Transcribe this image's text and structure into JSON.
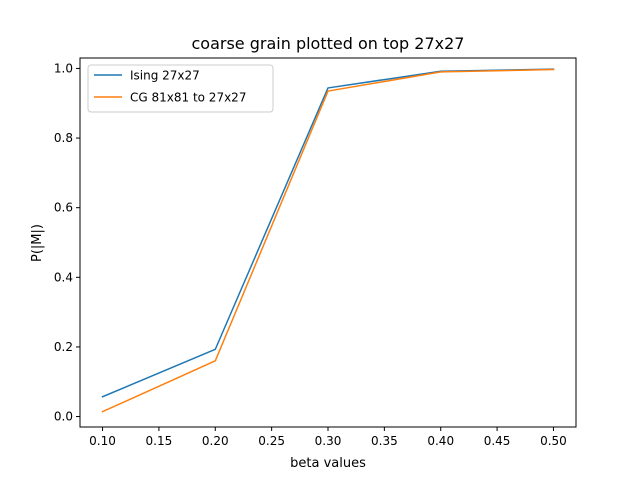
{
  "chart_data": {
    "type": "line",
    "title": "coarse grain plotted on top 27x27",
    "xlabel": "beta values",
    "ylabel": "P(|M|)",
    "xlim": [
      0.08,
      0.52
    ],
    "ylim": [
      -0.03,
      1.03
    ],
    "xticks": [
      0.1,
      0.15,
      0.2,
      0.25,
      0.3,
      0.35,
      0.4,
      0.45,
      0.5
    ],
    "xtick_labels": [
      "0.10",
      "0.15",
      "0.20",
      "0.25",
      "0.30",
      "0.35",
      "0.40",
      "0.45",
      "0.50"
    ],
    "yticks": [
      0.0,
      0.2,
      0.4,
      0.6,
      0.8,
      1.0
    ],
    "ytick_labels": [
      "0.0",
      "0.2",
      "0.4",
      "0.6",
      "0.8",
      "1.0"
    ],
    "grid": false,
    "legend_position": "top-left",
    "x": [
      0.1,
      0.2,
      0.3,
      0.4,
      0.5
    ],
    "series": [
      {
        "name": "Ising 27x27",
        "color": "#1f77b4",
        "values": [
          0.057,
          0.193,
          0.944,
          0.992,
          0.998
        ]
      },
      {
        "name": "CG 81x81 to 27x27",
        "color": "#ff7f0e",
        "values": [
          0.014,
          0.16,
          0.935,
          0.99,
          0.997
        ]
      }
    ]
  }
}
